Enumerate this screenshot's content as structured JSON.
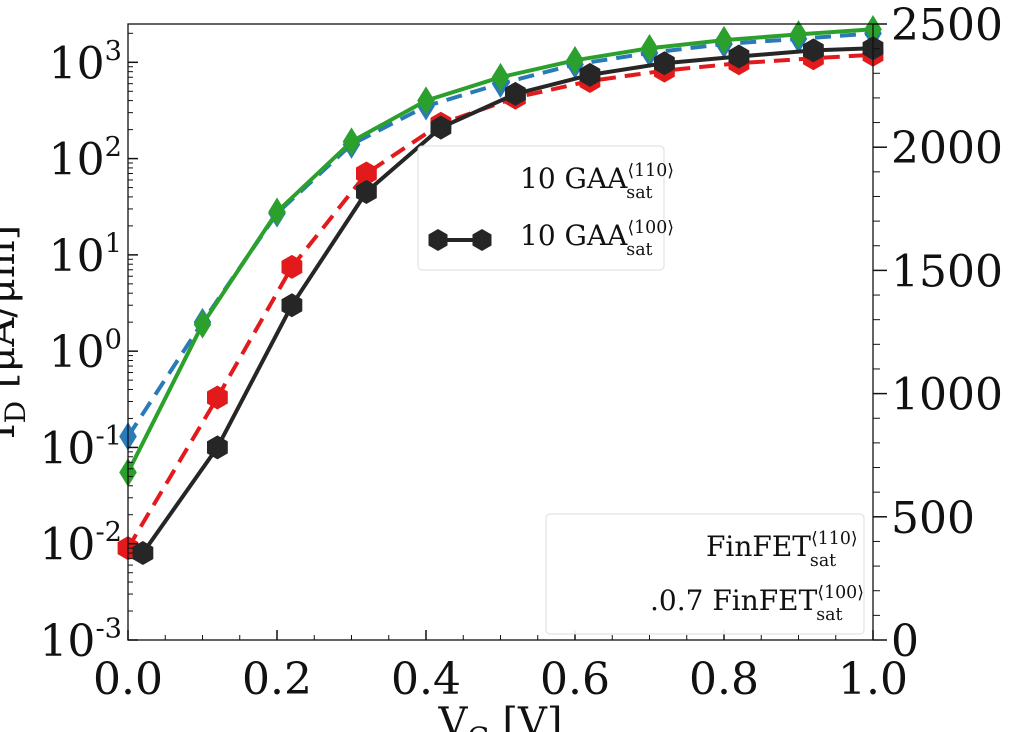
{
  "chart_data": {
    "type": "line",
    "xlabel": "V_G [V]",
    "ylabel": "I_D [μA/μm]",
    "x_ticks": [
      "0.0",
      "0.2",
      "0.4",
      "0.6",
      "0.8",
      "1.0"
    ],
    "left_y_ticks": [
      "10^{-3}",
      "10^{-2}",
      "10^{-1}",
      "10^{0}",
      "10^{1}",
      "10^{2}",
      "10^{3}"
    ],
    "right_y_ticks": [
      "0",
      "500",
      "1000",
      "1500",
      "2000",
      "2500"
    ],
    "xlim": [
      0.0,
      1.0
    ],
    "left_ylim": [
      0.001,
      2500
    ],
    "left_yscale": "log",
    "right_ylim": [
      0,
      2500
    ],
    "legends": [
      {
        "position": "upper-center",
        "entries": [
          "10 GAA_sat^{⟨110⟩}",
          "10 GAA_sat^{⟨100⟩}"
        ]
      },
      {
        "position": "lower-right",
        "entries": [
          "FinFET_sat^{⟨110⟩}",
          ".0.7 FinFET_sat^{⟨100⟩}"
        ]
      }
    ],
    "series": [
      {
        "color": "#2a7ab8",
        "marker": "diamond",
        "dash": "dashed",
        "x": [
          0.0,
          0.1,
          0.2,
          0.3,
          0.4,
          0.5,
          0.6,
          0.7,
          0.8,
          0.9,
          1.0
        ],
        "y": [
          0.13,
          2.0,
          27,
          140,
          350,
          600,
          950,
          1250,
          1550,
          1750,
          2000
        ]
      },
      {
        "color": "#2ca02c",
        "marker": "diamond",
        "dash": "solid",
        "x": [
          0.0,
          0.1,
          0.2,
          0.3,
          0.4,
          0.5,
          0.6,
          0.7,
          0.8,
          0.9,
          1.0
        ],
        "y": [
          0.055,
          1.9,
          28,
          150,
          400,
          700,
          1050,
          1400,
          1700,
          1950,
          2200
        ]
      },
      {
        "color": "#e31a1c",
        "marker": "hexagon",
        "dash": "dashed",
        "x": [
          0.0,
          0.12,
          0.22,
          0.32,
          0.42,
          0.52,
          0.62,
          0.72,
          0.82,
          0.92,
          1.0
        ],
        "y": [
          0.009,
          0.33,
          7.5,
          70,
          230,
          430,
          640,
          820,
          980,
          1100,
          1200
        ]
      },
      {
        "color": "#262626",
        "marker": "hexagon",
        "dash": "solid",
        "x": [
          0.02,
          0.12,
          0.22,
          0.32,
          0.42,
          0.52,
          0.62,
          0.72,
          0.82,
          0.92,
          1.0
        ],
        "y": [
          0.008,
          0.1,
          3.0,
          45,
          210,
          470,
          740,
          980,
          1150,
          1330,
          1400
        ]
      }
    ]
  }
}
